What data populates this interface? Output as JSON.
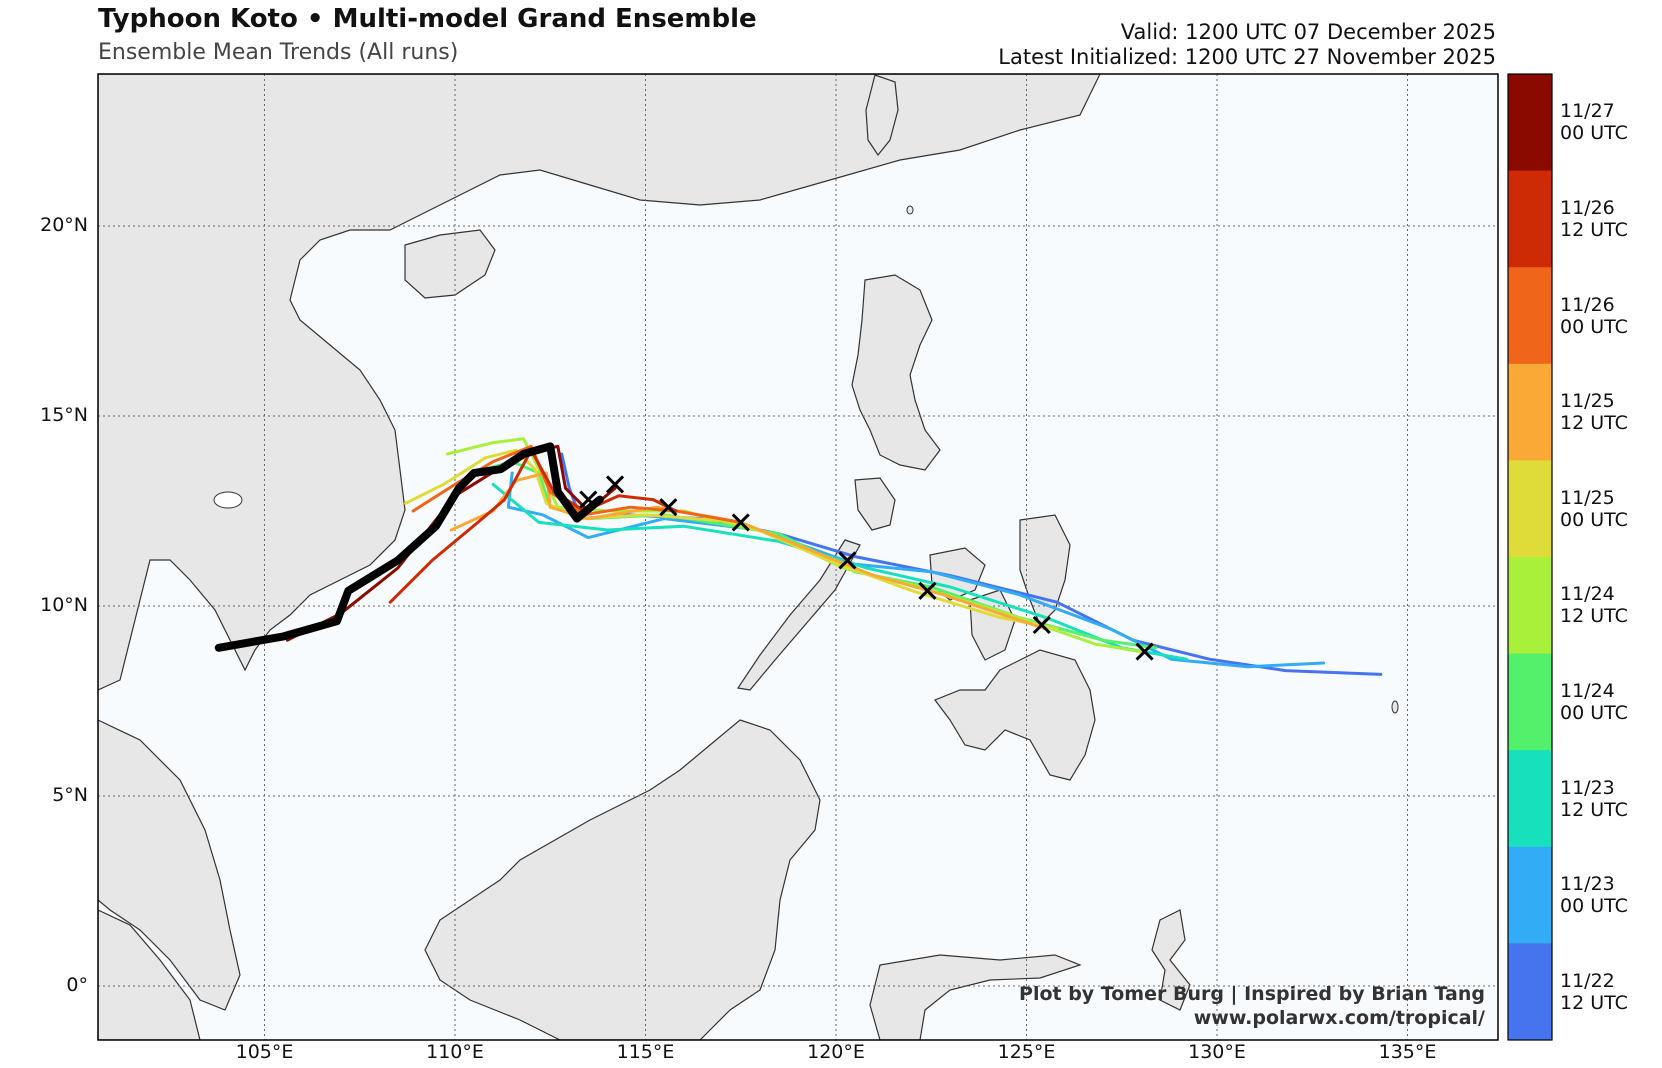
{
  "header": {
    "title": "Typhoon Koto • Multi-model Grand Ensemble",
    "subtitle": "Ensemble Mean Trends (All runs)",
    "valid": "Valid: 1200 UTC 07 December 2025",
    "latest_init": "Latest Initialized: 1200 UTC 27 November 2025"
  },
  "axes": {
    "lat_labels": [
      "20°N",
      "15°N",
      "10°N",
      "5°N",
      "0°"
    ],
    "lon_labels": [
      "105°E",
      "110°E",
      "115°E",
      "120°E",
      "125°E",
      "130°E",
      "135°E"
    ]
  },
  "colorbar": {
    "labels": [
      {
        "line1": "11/27",
        "line2": "00 UTC"
      },
      {
        "line1": "11/26",
        "line2": "12 UTC"
      },
      {
        "line1": "11/26",
        "line2": "00 UTC"
      },
      {
        "line1": "11/25",
        "line2": "12 UTC"
      },
      {
        "line1": "11/25",
        "line2": "00 UTC"
      },
      {
        "line1": "11/24",
        "line2": "12 UTC"
      },
      {
        "line1": "11/24",
        "line2": "00 UTC"
      },
      {
        "line1": "11/23",
        "line2": "12 UTC"
      },
      {
        "line1": "11/23",
        "line2": "00 UTC"
      },
      {
        "line1": "11/22",
        "line2": "12 UTC"
      }
    ],
    "colors": [
      "#8b0a00",
      "#cd2a05",
      "#f0651a",
      "#fba936",
      "#dfdc3a",
      "#a9f03a",
      "#52f06b",
      "#17e0bd",
      "#31acf5",
      "#4673ee"
    ]
  },
  "credits": {
    "line1": "Plot by Tomer Burg | Inspired by Brian Tang",
    "line2": "www.polarwx.com/tropical/"
  },
  "tracks": [
    {
      "color": "#4673ee",
      "points": [
        [
          112.8,
          14.0
        ],
        [
          113.0,
          13.1
        ],
        [
          113.3,
          12.3
        ],
        [
          114.5,
          12.4
        ],
        [
          116.5,
          12.3
        ],
        [
          118.5,
          11.9
        ],
        [
          120.5,
          11.3
        ],
        [
          123.0,
          10.8
        ],
        [
          125.8,
          10.1
        ],
        [
          127.8,
          9.1
        ],
        [
          129.8,
          8.6
        ],
        [
          131.8,
          8.3
        ],
        [
          134.3,
          8.2
        ]
      ]
    },
    {
      "color": "#31acf5",
      "points": [
        [
          111.5,
          13.5
        ],
        [
          111.4,
          12.6
        ],
        [
          112.3,
          12.4
        ],
        [
          113.5,
          11.8
        ],
        [
          115.5,
          12.3
        ],
        [
          118.0,
          12.0
        ],
        [
          120.5,
          11.1
        ],
        [
          122.5,
          10.9
        ],
        [
          124.8,
          10.3
        ],
        [
          127.2,
          9.4
        ],
        [
          128.8,
          8.6
        ],
        [
          130.8,
          8.4
        ],
        [
          132.8,
          8.5
        ]
      ]
    },
    {
      "color": "#17e0bd",
      "points": [
        [
          111.0,
          13.2
        ],
        [
          112.2,
          12.2
        ],
        [
          114.0,
          12.0
        ],
        [
          116.0,
          12.1
        ],
        [
          118.5,
          11.7
        ],
        [
          120.8,
          11.0
        ],
        [
          123.0,
          10.5
        ],
        [
          125.5,
          9.7
        ],
        [
          127.5,
          8.9
        ],
        [
          129.2,
          8.6
        ]
      ]
    },
    {
      "color": "#52f06b",
      "points": [
        [
          110.8,
          13.6
        ],
        [
          111.5,
          13.8
        ],
        [
          112.2,
          13.5
        ],
        [
          112.5,
          12.6
        ],
        [
          113.5,
          12.3
        ],
        [
          115.5,
          12.4
        ],
        [
          118.5,
          11.9
        ],
        [
          120.5,
          10.9
        ],
        [
          122.5,
          10.5
        ],
        [
          124.8,
          9.7
        ],
        [
          127.0,
          9.1
        ],
        [
          128.4,
          8.9
        ]
      ]
    },
    {
      "color": "#a9f03a",
      "points": [
        [
          109.8,
          14.0
        ],
        [
          111.0,
          14.3
        ],
        [
          111.8,
          14.4
        ],
        [
          112.3,
          13.4
        ],
        [
          112.7,
          12.6
        ],
        [
          114.0,
          12.5
        ],
        [
          116.0,
          12.5
        ],
        [
          118.3,
          11.9
        ],
        [
          120.2,
          11.0
        ],
        [
          122.2,
          10.5
        ],
        [
          124.5,
          9.8
        ],
        [
          126.8,
          9.0
        ],
        [
          128.0,
          8.8
        ]
      ]
    },
    {
      "color": "#dfdc3a",
      "points": [
        [
          108.7,
          12.7
        ],
        [
          109.7,
          13.2
        ],
        [
          110.8,
          13.9
        ],
        [
          111.6,
          14.1
        ],
        [
          112.1,
          13.6
        ],
        [
          112.4,
          12.7
        ],
        [
          113.3,
          12.3
        ],
        [
          115.0,
          12.4
        ],
        [
          117.5,
          12.2
        ],
        [
          119.8,
          11.2
        ],
        [
          122.0,
          10.4
        ],
        [
          124.3,
          9.7
        ],
        [
          125.8,
          9.4
        ]
      ]
    },
    {
      "color": "#fba936",
      "points": [
        [
          109.9,
          12.0
        ],
        [
          111.0,
          12.5
        ],
        [
          111.6,
          13.3
        ],
        [
          112.4,
          13.5
        ],
        [
          112.5,
          12.6
        ],
        [
          113.5,
          12.3
        ],
        [
          115.3,
          12.6
        ],
        [
          117.5,
          12.2
        ],
        [
          119.5,
          11.4
        ],
        [
          121.0,
          10.8
        ],
        [
          122.8,
          10.3
        ],
        [
          124.6,
          9.7
        ],
        [
          125.5,
          9.4
        ]
      ]
    },
    {
      "color": "#f0651a",
      "points": [
        [
          108.9,
          12.5
        ],
        [
          110.0,
          13.2
        ],
        [
          111.0,
          13.8
        ],
        [
          112.0,
          14.2
        ],
        [
          112.5,
          13.0
        ],
        [
          113.4,
          12.4
        ],
        [
          114.6,
          12.6
        ],
        [
          115.8,
          12.5
        ],
        [
          117.5,
          12.2
        ]
      ]
    },
    {
      "color": "#cd2a05",
      "points": [
        [
          108.3,
          10.1
        ],
        [
          109.4,
          11.2
        ],
        [
          110.6,
          12.2
        ],
        [
          111.3,
          12.8
        ],
        [
          112.0,
          14.1
        ],
        [
          112.6,
          13.0
        ],
        [
          113.4,
          12.5
        ],
        [
          114.3,
          12.9
        ],
        [
          115.2,
          12.8
        ],
        [
          115.8,
          12.5
        ]
      ]
    },
    {
      "color": "#8b0a00",
      "points": [
        [
          105.6,
          9.1
        ],
        [
          107.0,
          9.8
        ],
        [
          108.5,
          11.0
        ],
        [
          110.0,
          12.9
        ],
        [
          110.8,
          13.4
        ],
        [
          111.8,
          14.0
        ],
        [
          112.7,
          14.2
        ],
        [
          112.9,
          13.1
        ],
        [
          113.5,
          12.5
        ],
        [
          114.2,
          13.1
        ]
      ]
    }
  ],
  "mean_track": {
    "color": "#000000",
    "points": [
      [
        103.8,
        8.9
      ],
      [
        105.5,
        9.2
      ],
      [
        106.9,
        9.6
      ],
      [
        107.2,
        10.4
      ],
      [
        108.5,
        11.2
      ],
      [
        109.5,
        12.1
      ],
      [
        110.1,
        13.1
      ],
      [
        110.5,
        13.5
      ],
      [
        111.2,
        13.6
      ],
      [
        111.8,
        14.0
      ],
      [
        112.5,
        14.2
      ],
      [
        112.7,
        13.0
      ],
      [
        113.2,
        12.3
      ],
      [
        113.8,
        12.8
      ]
    ]
  },
  "x_markers": [
    [
      113.5,
      12.8
    ],
    [
      114.2,
      13.2
    ],
    [
      115.6,
      12.6
    ],
    [
      117.5,
      12.2
    ],
    [
      120.3,
      11.2
    ],
    [
      122.4,
      10.4
    ],
    [
      125.4,
      9.5
    ],
    [
      128.1,
      8.8
    ]
  ]
}
